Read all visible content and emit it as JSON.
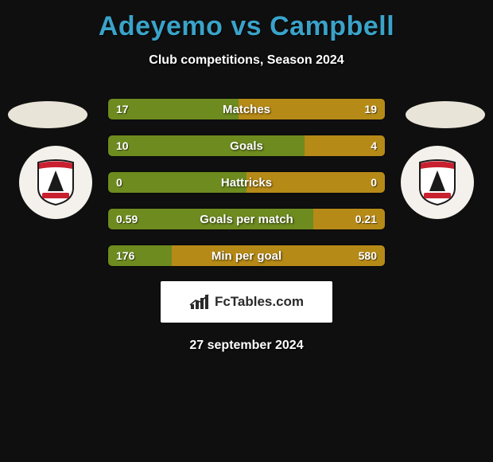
{
  "title": "Adeyemo vs Campbell",
  "title_color": "#3aa3c9",
  "subtitle": "Club competitions, Season 2024",
  "background_color": "#0f0f0f",
  "avatar": {
    "left_color": "#e9e4d8",
    "right_color": "#e9e4d8"
  },
  "crest": {
    "bg": "#f4f1ec",
    "shield_border": "#1a1a1a",
    "shield_top_band": "#c8202f",
    "shield_body": "#ffffff",
    "shield_silhouette": "#1a1a1a",
    "banner": "#c8202f"
  },
  "bars": {
    "left_color": "#6e8b1f",
    "right_color": "#b68a17",
    "text_color": "#ffffff",
    "rows": [
      {
        "label": "Matches",
        "left": "17",
        "right": "19",
        "left_pct": 47
      },
      {
        "label": "Goals",
        "left": "10",
        "right": "4",
        "left_pct": 71
      },
      {
        "label": "Hattricks",
        "left": "0",
        "right": "0",
        "left_pct": 50
      },
      {
        "label": "Goals per match",
        "left": "0.59",
        "right": "0.21",
        "left_pct": 74
      },
      {
        "label": "Min per goal",
        "left": "176",
        "right": "580",
        "left_pct": 23
      }
    ]
  },
  "brand": {
    "icon_color": "#2a2a2a",
    "text": "FcTables.com",
    "bg": "#ffffff"
  },
  "date": "27 september 2024"
}
